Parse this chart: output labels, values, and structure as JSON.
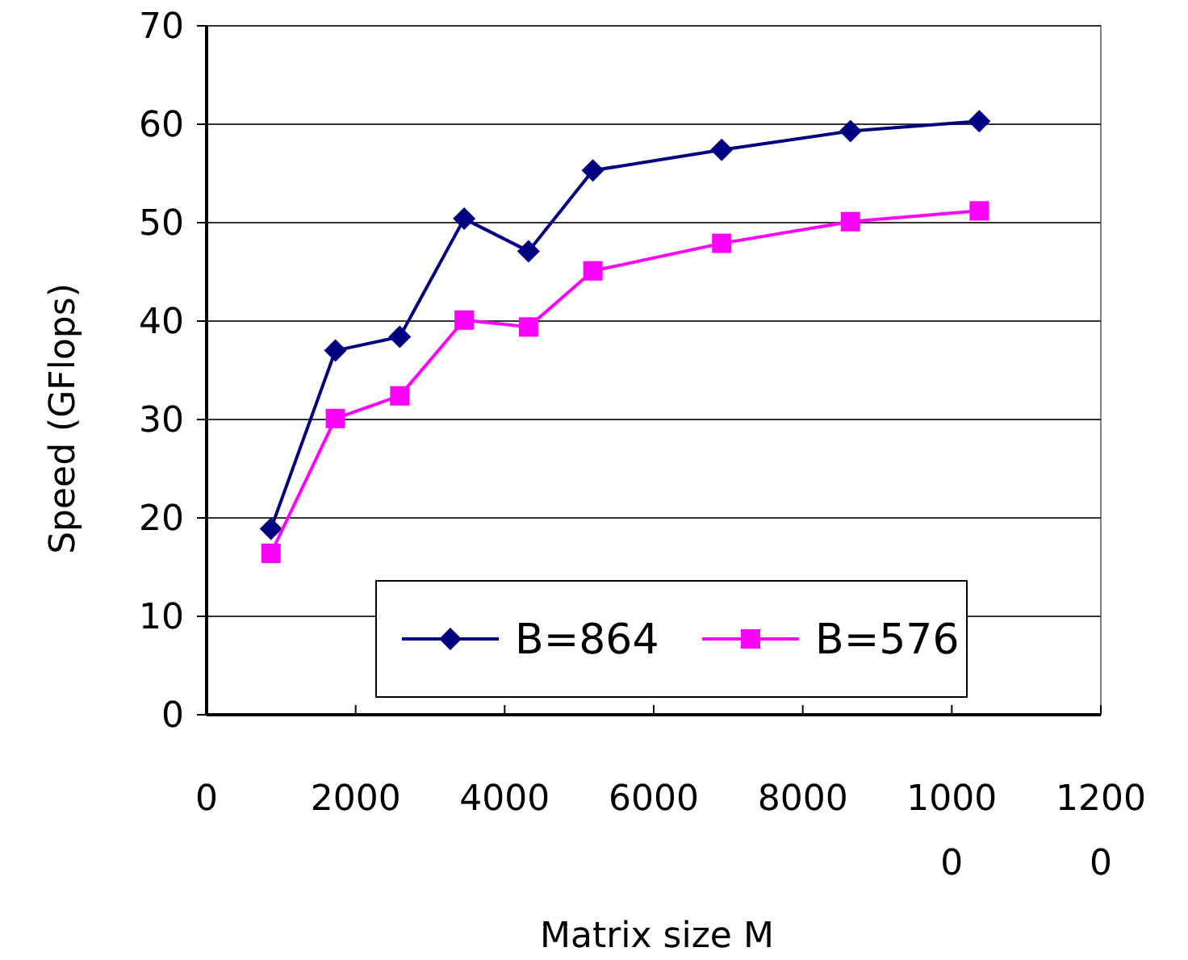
{
  "chart_data": {
    "type": "line",
    "xlabel": "Matrix size M",
    "ylabel": "Speed (GFlops)",
    "x": [
      864,
      1728,
      2592,
      3456,
      4320,
      5184,
      6912,
      8640,
      10368
    ],
    "series": [
      {
        "name": "B=864",
        "color": "#000080",
        "marker": "diamond",
        "values": [
          18.9,
          37.0,
          38.4,
          50.4,
          47.1,
          55.3,
          57.4,
          59.3,
          60.3
        ]
      },
      {
        "name": "B=576",
        "color": "#ff00ff",
        "marker": "square",
        "values": [
          16.4,
          30.1,
          32.4,
          40.1,
          39.4,
          45.1,
          47.9,
          50.1,
          51.2
        ]
      }
    ],
    "xlim": [
      0,
      12000
    ],
    "xticks": [
      0,
      2000,
      4000,
      6000,
      8000,
      10000,
      12000
    ],
    "ylim": [
      0,
      70
    ],
    "yticks": [
      0,
      10,
      20,
      30,
      40,
      50,
      60,
      70
    ],
    "grid": "y",
    "legend": "bottom",
    "line_style": "solid"
  }
}
